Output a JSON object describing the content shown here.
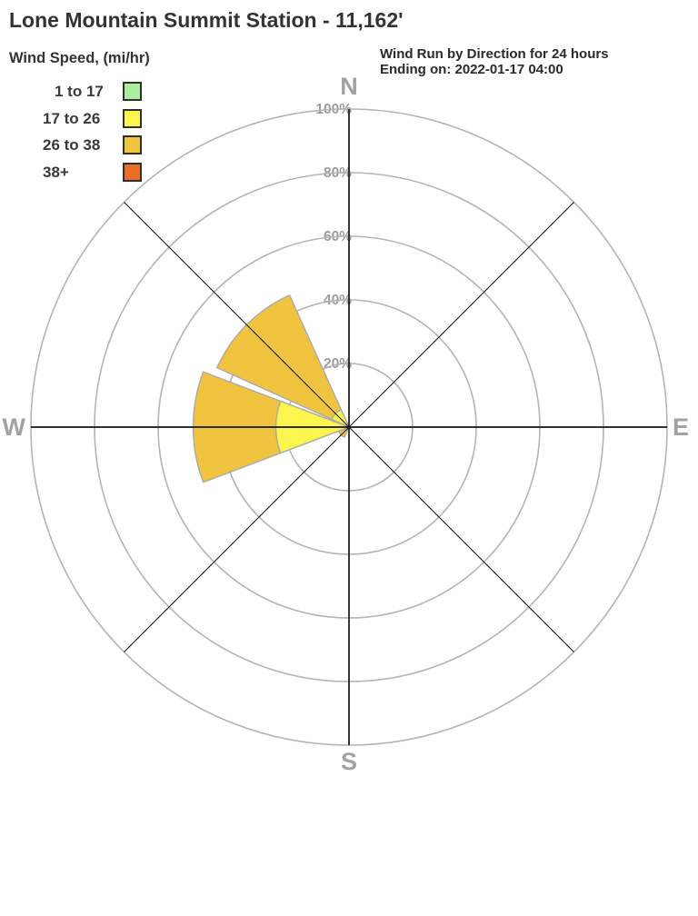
{
  "title": "Lone Mountain Summit Station - 11,162'",
  "legend": {
    "heading": "Wind Speed, (mi/hr)",
    "items": [
      {
        "label": "1 to 17",
        "color": "#a9ef9e"
      },
      {
        "label": "17 to 26",
        "color": "#fbf54d"
      },
      {
        "label": "26 to 38",
        "color": "#f0c43e"
      },
      {
        "label": "38+",
        "color": "#e96e27"
      }
    ]
  },
  "header_right": {
    "line1": "Wind Run by Direction for 24 hours",
    "line2": "Ending on: 2022-01-17 04:00"
  },
  "chart_data": {
    "type": "windrose",
    "title": "Wind Run by Direction for 24 hours",
    "subtitle": "Ending on: 2022-01-17 04:00",
    "radial_unit": "%",
    "radial_range": [
      0,
      100
    ],
    "grid": "on",
    "legend_position": "top-left",
    "rings": [
      {
        "value": 20,
        "label": "20%"
      },
      {
        "value": 40,
        "label": "40%"
      },
      {
        "value": 60,
        "label": "60%"
      },
      {
        "value": 80,
        "label": "80%"
      },
      {
        "value": 100,
        "label": "100%"
      }
    ],
    "cardinals": [
      {
        "dir": "N",
        "bearing": 0
      },
      {
        "dir": "E",
        "bearing": 90
      },
      {
        "dir": "S",
        "bearing": 180
      },
      {
        "dir": "W",
        "bearing": 270
      }
    ],
    "speed_bins": [
      "1 to 17",
      "17 to 26",
      "26 to 38",
      "38+"
    ],
    "bin_colors": {
      "1 to 17": "#a9ef9e",
      "17 to 26": "#fbf54d",
      "26 to 38": "#f0c43e",
      "38+": "#e96e27"
    },
    "sector_width_deg": 41.5,
    "sectors": [
      {
        "direction": "N",
        "bearing": 0,
        "segments": []
      },
      {
        "direction": "NE",
        "bearing": 45,
        "segments": []
      },
      {
        "direction": "E",
        "bearing": 90,
        "segments": []
      },
      {
        "direction": "SE",
        "bearing": 135,
        "segments": []
      },
      {
        "direction": "S",
        "bearing": 180,
        "segments": []
      },
      {
        "direction": "SW",
        "bearing": 225,
        "segments": [
          {
            "bin": "26 to 38",
            "from": 0,
            "to": 3.5
          }
        ]
      },
      {
        "direction": "W",
        "bearing": 270,
        "segments": [
          {
            "bin": "17 to 26",
            "from": 0,
            "to": 23
          },
          {
            "bin": "26 to 38",
            "from": 23,
            "to": 49
          }
        ]
      },
      {
        "direction": "NW",
        "bearing": 315,
        "segments": [
          {
            "bin": "17 to 26",
            "from": 0,
            "to": 6
          },
          {
            "bin": "26 to 38",
            "from": 6,
            "to": 45.5
          }
        ]
      }
    ],
    "colors": {
      "grid": "#b4b4b4",
      "axis": "#141414",
      "labels": "#9c9c9c",
      "wedge_stroke": "#ababab"
    }
  }
}
